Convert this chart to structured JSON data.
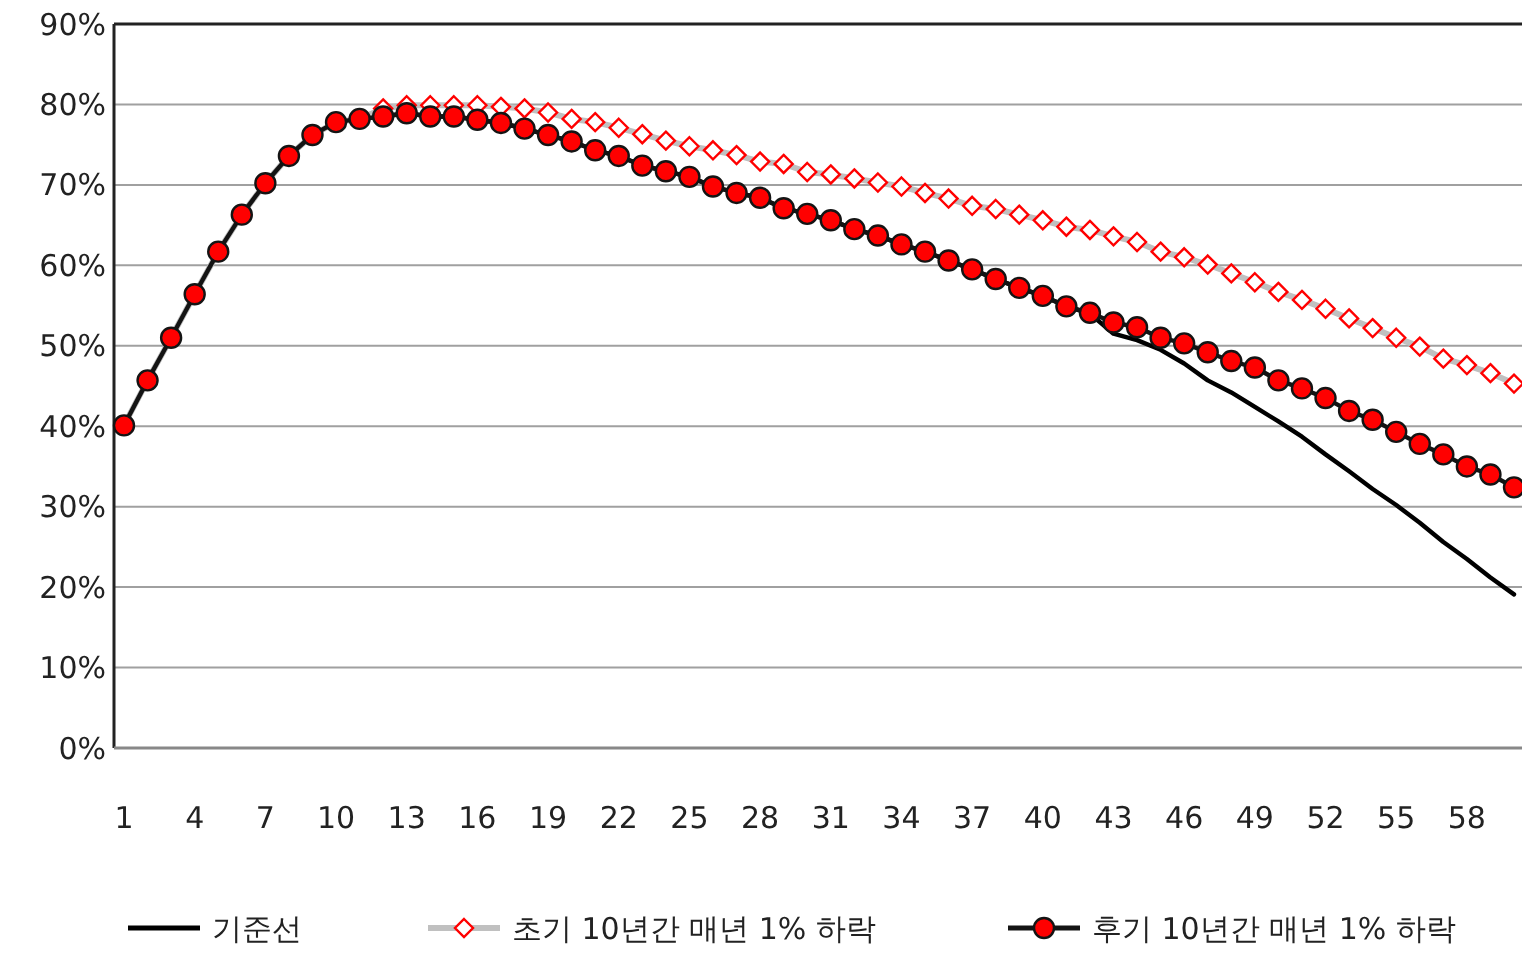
{
  "chart_data": {
    "type": "line",
    "categories": [
      "1",
      null,
      null,
      "4",
      null,
      null,
      "7",
      null,
      null,
      "10",
      null,
      null,
      "13",
      null,
      null,
      "16",
      null,
      null,
      "19",
      null,
      null,
      "22",
      null,
      null,
      "25",
      null,
      null,
      "28",
      null,
      null,
      "31",
      null,
      null,
      "34",
      null,
      null,
      "37",
      null,
      null,
      "40",
      null,
      null,
      "43",
      null,
      null,
      "46",
      null,
      null,
      "49",
      null,
      null,
      "52",
      null,
      null,
      "55",
      null,
      null,
      "58",
      null,
      null
    ],
    "ylim": [
      0,
      90
    ],
    "yticks": [
      {
        "value": 0,
        "label": "0%"
      },
      {
        "value": 10,
        "label": "10%"
      },
      {
        "value": 20,
        "label": "20%"
      },
      {
        "value": 30,
        "label": "30%"
      },
      {
        "value": 40,
        "label": "40%"
      },
      {
        "value": 50,
        "label": "50%"
      },
      {
        "value": 60,
        "label": "60%"
      },
      {
        "value": 70,
        "label": "70%"
      },
      {
        "value": 80,
        "label": "80%"
      },
      {
        "value": 90,
        "label": "90%"
      }
    ],
    "grid": "y",
    "legend": "bottom",
    "series": [
      {
        "name": "기준선",
        "color": "#000000",
        "marker": "none",
        "values": [
          40.1,
          45.7,
          51.0,
          56.4,
          61.7,
          66.3,
          70.2,
          73.6,
          76.2,
          77.8,
          78.2,
          78.5,
          78.9,
          78.5,
          78.5,
          78.1,
          77.7,
          77.0,
          76.2,
          75.4,
          74.3,
          73.6,
          72.4,
          71.7,
          71.0,
          69.8,
          69.0,
          68.4,
          67.1,
          66.4,
          65.6,
          64.5,
          63.7,
          62.6,
          61.7,
          60.6,
          59.5,
          58.3,
          57.2,
          56.2,
          54.9,
          54.0,
          51.5,
          50.7,
          49.5,
          47.8,
          45.7,
          44.2,
          42.4,
          40.6,
          38.7,
          36.5,
          34.4,
          32.2,
          30.2,
          28.0,
          25.6,
          23.5,
          21.2,
          19.1
        ]
      },
      {
        "name": "초기 10년간 매년 1% 하락",
        "color": "#c0c0c0",
        "marker": "diamond",
        "values": [
          40.1,
          45.7,
          51.0,
          56.4,
          61.7,
          66.3,
          70.2,
          73.6,
          76.2,
          77.8,
          78.2,
          79.5,
          79.9,
          79.9,
          79.9,
          79.9,
          79.7,
          79.5,
          79.0,
          78.2,
          77.8,
          77.1,
          76.3,
          75.5,
          74.8,
          74.3,
          73.7,
          72.9,
          72.6,
          71.6,
          71.3,
          70.8,
          70.3,
          69.8,
          69.0,
          68.3,
          67.4,
          67.0,
          66.3,
          65.6,
          64.8,
          64.4,
          63.6,
          62.9,
          61.7,
          61.0,
          60.1,
          59.0,
          57.9,
          56.7,
          55.7,
          54.6,
          53.4,
          52.2,
          51.0,
          49.9,
          48.4,
          47.6,
          46.6,
          45.3
        ]
      },
      {
        "name": "후기 10년간 매년 1% 하락",
        "color": "#141414",
        "marker": "circle",
        "values": [
          40.1,
          45.7,
          51.0,
          56.4,
          61.7,
          66.3,
          70.2,
          73.6,
          76.2,
          77.8,
          78.2,
          78.5,
          78.9,
          78.5,
          78.5,
          78.1,
          77.7,
          77.0,
          76.2,
          75.4,
          74.3,
          73.6,
          72.4,
          71.7,
          71.0,
          69.8,
          69.0,
          68.4,
          67.1,
          66.4,
          65.6,
          64.5,
          63.7,
          62.6,
          61.7,
          60.6,
          59.5,
          58.3,
          57.2,
          56.2,
          54.9,
          54.1,
          52.9,
          52.3,
          51.0,
          50.3,
          49.2,
          48.1,
          47.3,
          45.7,
          44.7,
          43.5,
          41.9,
          40.8,
          39.3,
          37.8,
          36.5,
          35.0,
          34.0,
          32.4
        ]
      }
    ]
  }
}
